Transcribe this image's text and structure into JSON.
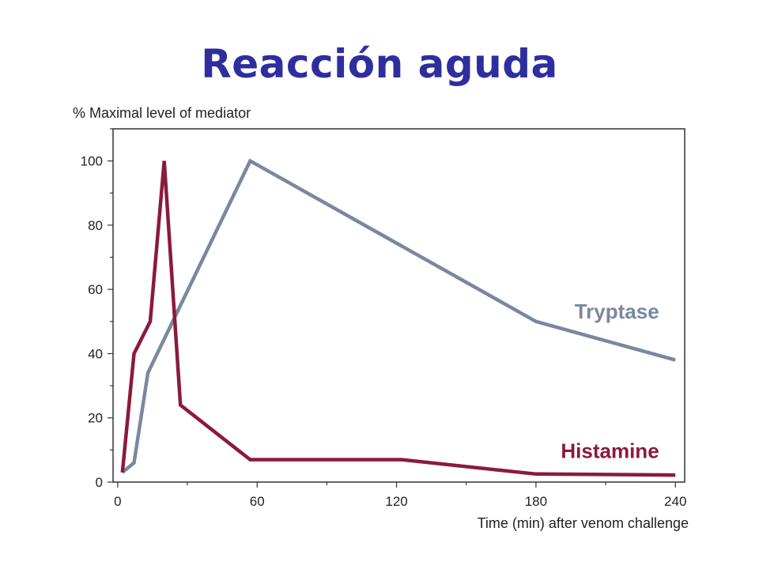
{
  "slide": {
    "title": "Reacción aguda"
  },
  "chart_data": {
    "type": "line",
    "ylabel": "% Maximal level of mediator",
    "xlabel": "Time (min) after venom challenge",
    "xlim": [
      -2,
      244
    ],
    "ylim": [
      0,
      110
    ],
    "x_ticks": [
      0,
      60,
      120,
      180,
      240
    ],
    "y_ticks": [
      0,
      20,
      40,
      60,
      80,
      100
    ],
    "grid": false,
    "series": [
      {
        "name": "Tryptase",
        "color": "#7b87a0",
        "points": [
          [
            2,
            3
          ],
          [
            7,
            6
          ],
          [
            13,
            34
          ],
          [
            57,
            100
          ],
          [
            180,
            50
          ],
          [
            240,
            38
          ]
        ]
      },
      {
        "name": "Histamine",
        "color": "#8b1a3c",
        "points": [
          [
            2,
            3
          ],
          [
            7,
            40
          ],
          [
            14,
            50
          ],
          [
            20,
            100
          ],
          [
            27,
            24
          ],
          [
            57,
            7
          ],
          [
            122,
            7
          ],
          [
            180,
            2.5
          ],
          [
            240,
            2.2
          ]
        ]
      }
    ]
  }
}
